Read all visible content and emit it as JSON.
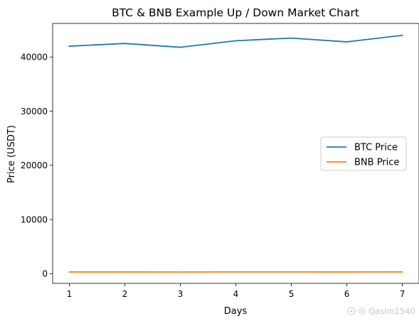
{
  "chart_data": {
    "type": "line",
    "title": "BTC & BNB Example Up / Down Market Chart",
    "xlabel": "Days",
    "ylabel": "Price (USDT)",
    "x": [
      1,
      2,
      3,
      4,
      5,
      6,
      7
    ],
    "x_ticks": [
      "1",
      "2",
      "3",
      "4",
      "5",
      "6",
      "7"
    ],
    "y_ticks": [
      "0",
      "10000",
      "20000",
      "30000",
      "40000"
    ],
    "y_tick_values": [
      0,
      10000,
      20000,
      30000,
      40000
    ],
    "xlim": [
      0.7,
      7.3
    ],
    "ylim": [
      -1800,
      46200
    ],
    "grid": false,
    "legend_position": "center-right",
    "series": [
      {
        "name": "BTC Price",
        "color": "#1f77b4",
        "values": [
          42000,
          42500,
          41800,
          43000,
          43500,
          42800,
          44000
        ]
      },
      {
        "name": "BNB Price",
        "color": "#ff7f0e",
        "values": [
          310,
          305,
          300,
          310,
          315,
          308,
          320
        ]
      }
    ]
  },
  "watermark": {
    "text": "Qasim1540"
  }
}
